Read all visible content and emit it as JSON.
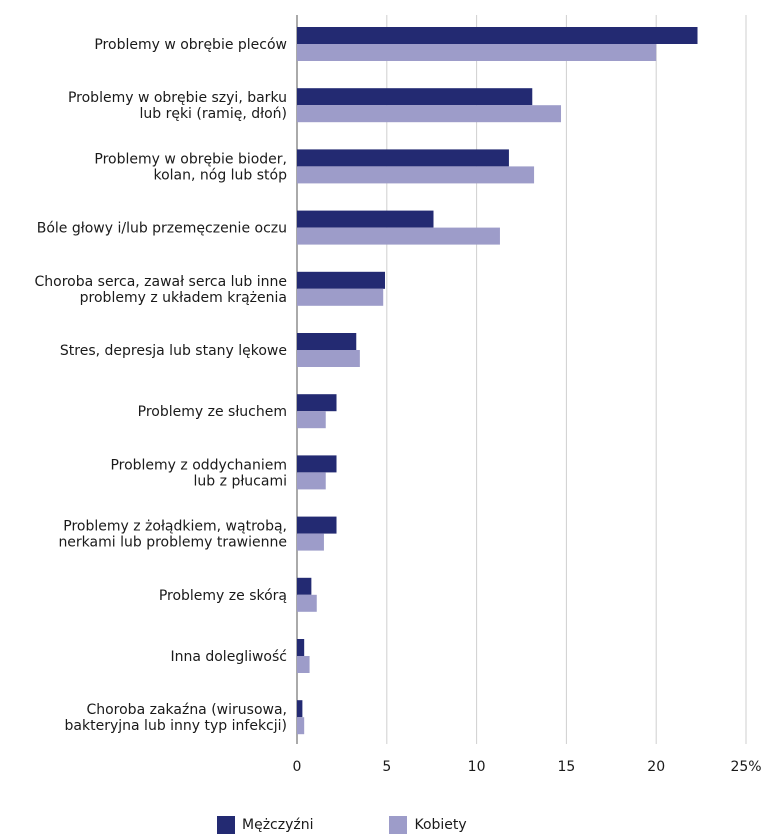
{
  "chart_data": {
    "type": "bar",
    "orientation": "horizontal",
    "categories": [
      [
        "Problemy w obrębie pleców"
      ],
      [
        "Problemy w obrębie szyi, barku",
        "lub ręki (ramię, dłoń)"
      ],
      [
        "Problemy w obrębie bioder,",
        "kolan, nóg lub stóp"
      ],
      [
        "Bóle głowy i/lub przemęczenie oczu"
      ],
      [
        "Choroba serca, zawał serca lub inne",
        "problemy z układem krążenia"
      ],
      [
        "Stres, depresja lub stany lękowe"
      ],
      [
        "Problemy ze słuchem"
      ],
      [
        "Problemy z oddychaniem",
        "lub z płucami"
      ],
      [
        "Problemy z żołądkiem, wątrobą,",
        "nerkami lub problemy trawienne"
      ],
      [
        "Problemy ze skórą"
      ],
      [
        "Inna dolegliwość"
      ],
      [
        "Choroba zakaźna (wirusowa,",
        "bakteryjna lub inny typ infekcji)"
      ]
    ],
    "series": [
      {
        "name": "Mężczyźni",
        "color": "#232a72",
        "values": [
          22.3,
          13.1,
          11.8,
          7.6,
          4.9,
          3.3,
          2.2,
          2.2,
          2.2,
          0.8,
          0.4,
          0.3
        ]
      },
      {
        "name": "Kobiety",
        "color": "#9d9cc9",
        "values": [
          20.0,
          14.7,
          13.2,
          11.3,
          4.8,
          3.5,
          1.6,
          1.6,
          1.5,
          1.1,
          0.7,
          0.4
        ]
      }
    ],
    "xlim": [
      0,
      25
    ],
    "x_ticks": [
      "0",
      "5",
      "10",
      "15",
      "20",
      "25%"
    ],
    "x_tick_values": [
      0,
      5,
      10,
      15,
      20,
      25
    ],
    "grid": true,
    "legend_position": "bottom"
  }
}
